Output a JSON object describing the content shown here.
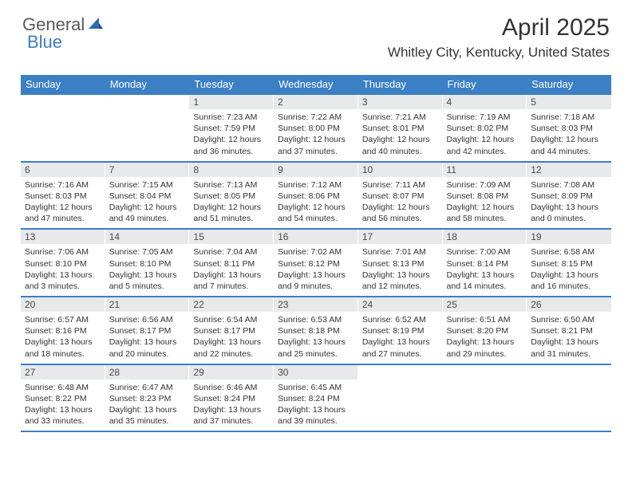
{
  "brand": {
    "general": "General",
    "blue": "Blue"
  },
  "title": "April 2025",
  "location": "Whitley City, Kentucky, United States",
  "colors": {
    "accent": "#3b7fc4",
    "dayStripBg": "#e8e9ea",
    "text": "#333333",
    "bg": "#ffffff"
  },
  "dayHeaders": [
    "Sunday",
    "Monday",
    "Tuesday",
    "Wednesday",
    "Thursday",
    "Friday",
    "Saturday"
  ],
  "weeks": [
    [
      null,
      null,
      {
        "n": "1",
        "sr": "7:23 AM",
        "ss": "7:59 PM",
        "dl": "12 hours and 36 minutes."
      },
      {
        "n": "2",
        "sr": "7:22 AM",
        "ss": "8:00 PM",
        "dl": "12 hours and 37 minutes."
      },
      {
        "n": "3",
        "sr": "7:21 AM",
        "ss": "8:01 PM",
        "dl": "12 hours and 40 minutes."
      },
      {
        "n": "4",
        "sr": "7:19 AM",
        "ss": "8:02 PM",
        "dl": "12 hours and 42 minutes."
      },
      {
        "n": "5",
        "sr": "7:18 AM",
        "ss": "8:03 PM",
        "dl": "12 hours and 44 minutes."
      }
    ],
    [
      {
        "n": "6",
        "sr": "7:16 AM",
        "ss": "8:03 PM",
        "dl": "12 hours and 47 minutes."
      },
      {
        "n": "7",
        "sr": "7:15 AM",
        "ss": "8:04 PM",
        "dl": "12 hours and 49 minutes."
      },
      {
        "n": "8",
        "sr": "7:13 AM",
        "ss": "8:05 PM",
        "dl": "12 hours and 51 minutes."
      },
      {
        "n": "9",
        "sr": "7:12 AM",
        "ss": "8:06 PM",
        "dl": "12 hours and 54 minutes."
      },
      {
        "n": "10",
        "sr": "7:11 AM",
        "ss": "8:07 PM",
        "dl": "12 hours and 56 minutes."
      },
      {
        "n": "11",
        "sr": "7:09 AM",
        "ss": "8:08 PM",
        "dl": "12 hours and 58 minutes."
      },
      {
        "n": "12",
        "sr": "7:08 AM",
        "ss": "8:09 PM",
        "dl": "13 hours and 0 minutes."
      }
    ],
    [
      {
        "n": "13",
        "sr": "7:06 AM",
        "ss": "8:10 PM",
        "dl": "13 hours and 3 minutes."
      },
      {
        "n": "14",
        "sr": "7:05 AM",
        "ss": "8:10 PM",
        "dl": "13 hours and 5 minutes."
      },
      {
        "n": "15",
        "sr": "7:04 AM",
        "ss": "8:11 PM",
        "dl": "13 hours and 7 minutes."
      },
      {
        "n": "16",
        "sr": "7:02 AM",
        "ss": "8:12 PM",
        "dl": "13 hours and 9 minutes."
      },
      {
        "n": "17",
        "sr": "7:01 AM",
        "ss": "8:13 PM",
        "dl": "13 hours and 12 minutes."
      },
      {
        "n": "18",
        "sr": "7:00 AM",
        "ss": "8:14 PM",
        "dl": "13 hours and 14 minutes."
      },
      {
        "n": "19",
        "sr": "6:58 AM",
        "ss": "8:15 PM",
        "dl": "13 hours and 16 minutes."
      }
    ],
    [
      {
        "n": "20",
        "sr": "6:57 AM",
        "ss": "8:16 PM",
        "dl": "13 hours and 18 minutes."
      },
      {
        "n": "21",
        "sr": "6:56 AM",
        "ss": "8:17 PM",
        "dl": "13 hours and 20 minutes."
      },
      {
        "n": "22",
        "sr": "6:54 AM",
        "ss": "8:17 PM",
        "dl": "13 hours and 22 minutes."
      },
      {
        "n": "23",
        "sr": "6:53 AM",
        "ss": "8:18 PM",
        "dl": "13 hours and 25 minutes."
      },
      {
        "n": "24",
        "sr": "6:52 AM",
        "ss": "8:19 PM",
        "dl": "13 hours and 27 minutes."
      },
      {
        "n": "25",
        "sr": "6:51 AM",
        "ss": "8:20 PM",
        "dl": "13 hours and 29 minutes."
      },
      {
        "n": "26",
        "sr": "6:50 AM",
        "ss": "8:21 PM",
        "dl": "13 hours and 31 minutes."
      }
    ],
    [
      {
        "n": "27",
        "sr": "6:48 AM",
        "ss": "8:22 PM",
        "dl": "13 hours and 33 minutes."
      },
      {
        "n": "28",
        "sr": "6:47 AM",
        "ss": "8:23 PM",
        "dl": "13 hours and 35 minutes."
      },
      {
        "n": "29",
        "sr": "6:46 AM",
        "ss": "8:24 PM",
        "dl": "13 hours and 37 minutes."
      },
      {
        "n": "30",
        "sr": "6:45 AM",
        "ss": "8:24 PM",
        "dl": "13 hours and 39 minutes."
      },
      null,
      null,
      null
    ]
  ],
  "labels": {
    "sunrise": "Sunrise: ",
    "sunset": "Sunset: ",
    "daylight": "Daylight: "
  }
}
